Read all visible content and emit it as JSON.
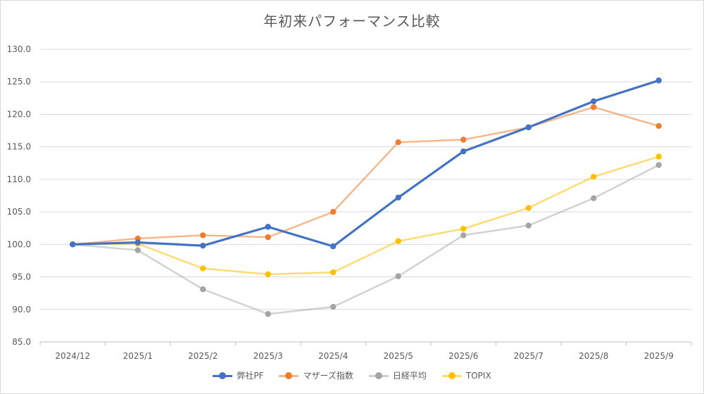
{
  "chart_data": {
    "type": "line",
    "title": "年初来パフォーマンス比較",
    "categories": [
      "2024/12",
      "2025/1",
      "2025/2",
      "2025/3",
      "2025/4",
      "2025/5",
      "2025/6",
      "2025/7",
      "2025/8",
      "2025/9"
    ],
    "ylim": [
      85.0,
      130.0
    ],
    "yticks": [
      "85.0",
      "90.0",
      "95.0",
      "100.0",
      "105.0",
      "110.0",
      "115.0",
      "120.0",
      "125.0",
      "130.0"
    ],
    "grid": true,
    "legend_position": "bottom",
    "series": [
      {
        "name": "弊社PF",
        "color": "#4472C4",
        "values": [
          100.0,
          100.3,
          99.8,
          102.7,
          99.7,
          107.2,
          114.3,
          118.0,
          122.0,
          125.2
        ]
      },
      {
        "name": "マザーズ指数",
        "color": "#ED7D31",
        "values": [
          100.0,
          100.9,
          101.4,
          101.1,
          105.0,
          115.7,
          116.1,
          118.0,
          121.1,
          118.2
        ]
      },
      {
        "name": "日経平均",
        "color": "#A5A5A5",
        "values": [
          100.0,
          99.1,
          93.1,
          89.3,
          90.4,
          95.1,
          101.4,
          102.9,
          107.1,
          112.2
        ]
      },
      {
        "name": "TOPIX",
        "color": "#FFC000",
        "values": [
          100.0,
          100.1,
          96.3,
          95.4,
          95.7,
          100.5,
          102.4,
          105.6,
          110.4,
          113.5
        ]
      }
    ]
  }
}
